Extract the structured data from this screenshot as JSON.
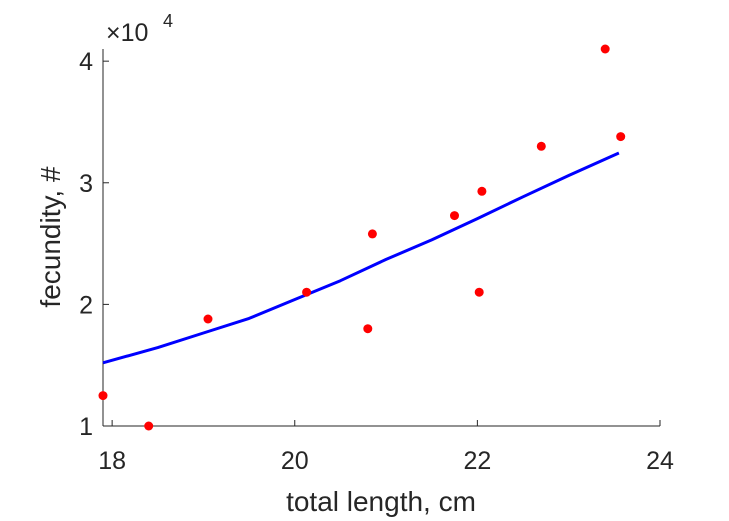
{
  "chart_data": {
    "type": "scatter",
    "title": "",
    "xlabel": "total length, cm",
    "ylabel": "fecundity, #",
    "xlim": [
      17.9,
      24
    ],
    "ylim": [
      1,
      4.1
    ],
    "y_multiplier_label": {
      "base": "×10",
      "exponent": "4"
    },
    "grid": false,
    "xticks": [
      18,
      20,
      22,
      24
    ],
    "xtick_labels": [
      "18",
      "20",
      "22",
      "24"
    ],
    "yticks": [
      1,
      2,
      3,
      4
    ],
    "ytick_labels": [
      "1",
      "2",
      "3",
      "4"
    ],
    "series": [
      {
        "type": "scatter",
        "color": "#ff0000",
        "points": [
          {
            "x": 17.9,
            "y": 1.25
          },
          {
            "x": 18.4,
            "y": 1.0
          },
          {
            "x": 19.05,
            "y": 1.88
          },
          {
            "x": 20.13,
            "y": 2.1
          },
          {
            "x": 20.8,
            "y": 1.8
          },
          {
            "x": 20.85,
            "y": 2.58
          },
          {
            "x": 21.75,
            "y": 2.73
          },
          {
            "x": 22.02,
            "y": 2.1
          },
          {
            "x": 22.05,
            "y": 2.93
          },
          {
            "x": 22.7,
            "y": 3.3
          },
          {
            "x": 23.4,
            "y": 4.1
          },
          {
            "x": 23.57,
            "y": 3.38
          }
        ]
      },
      {
        "type": "line",
        "color": "#0000ff",
        "points": [
          {
            "x": 17.9,
            "y": 1.52
          },
          {
            "x": 18.5,
            "y": 1.645
          },
          {
            "x": 19.0,
            "y": 1.765
          },
          {
            "x": 19.5,
            "y": 1.885
          },
          {
            "x": 20.0,
            "y": 2.04
          },
          {
            "x": 20.5,
            "y": 2.195
          },
          {
            "x": 21.0,
            "y": 2.37
          },
          {
            "x": 21.5,
            "y": 2.53
          },
          {
            "x": 22.0,
            "y": 2.705
          },
          {
            "x": 22.5,
            "y": 2.885
          },
          {
            "x": 23.0,
            "y": 3.06
          },
          {
            "x": 23.55,
            "y": 3.245
          }
        ]
      }
    ]
  }
}
